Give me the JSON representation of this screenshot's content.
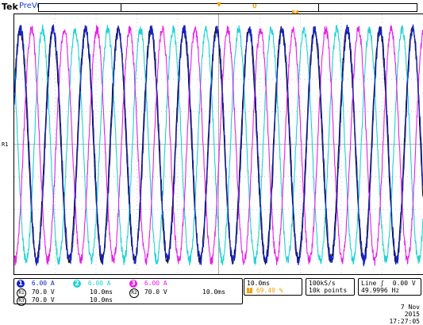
{
  "header": {
    "brand": "Tek",
    "status": "PreVu"
  },
  "colors": {
    "ch1": "#1420c8",
    "ch2": "#1ed2d2",
    "ch3": "#e61ee6",
    "ch4": "#111111",
    "orange": "#f2a000",
    "grid": "#999999"
  },
  "markers": {
    "r1": "R1",
    "trigger_mark": "T",
    "cursor_mark": "U"
  },
  "channels": [
    {
      "num": "1",
      "scale": "6.00 A"
    },
    {
      "num": "2",
      "scale": "6.00 A"
    },
    {
      "num": "3",
      "scale": "6.00 A"
    }
  ],
  "refs": [
    {
      "id": "R1",
      "volts": "70.0 V",
      "time": "10.0ms"
    },
    {
      "id": "R2",
      "volts": "70.0 V",
      "time": "10.0ms"
    },
    {
      "id": "R3",
      "volts": "70.0 V",
      "time": "10.0ms"
    }
  ],
  "timebase": {
    "time_div": "10.0ms",
    "trigger_pos": "69.40 %",
    "sample_rate": "100kS/s",
    "record_length": "10k points",
    "trigger_source": "Line",
    "trigger_slope": "ʃ",
    "trigger_level": "0.00 V",
    "frequency": "49.9996 Hz"
  },
  "datetime": {
    "date": "7 Nov 2015",
    "time": "17:27:05"
  }
}
